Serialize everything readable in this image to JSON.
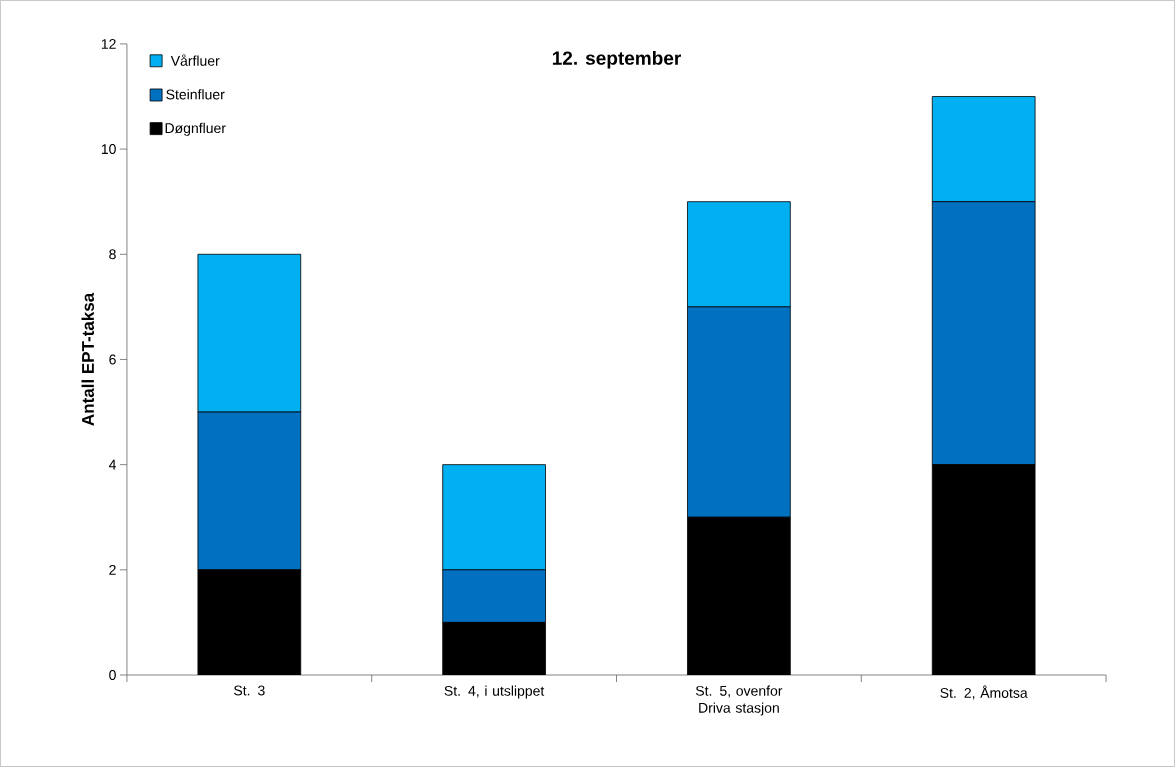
{
  "chart_data": {
    "type": "bar",
    "stacked": true,
    "title": "12. september",
    "ylabel": "Antall EPT-taksa",
    "categories": [
      "St. 3",
      "St. 4, i utslippet",
      "St. 5, ovenfor Driva stasjon",
      "St. 2, Åmotsa"
    ],
    "series": [
      {
        "name": "Døgnfluer",
        "color": "#000000",
        "values": [
          2,
          1,
          3,
          4
        ]
      },
      {
        "name": "Steinfluer",
        "color": "#0070c0",
        "values": [
          3,
          1,
          4,
          5
        ]
      },
      {
        "name": "Vårfluer",
        "color": "#00b0f0",
        "values": [
          3,
          2,
          2,
          2
        ]
      }
    ],
    "ylim": [
      0,
      12
    ],
    "yticks": [
      0,
      2,
      4,
      6,
      8,
      10,
      12
    ],
    "grid": false,
    "legend": "top left"
  }
}
